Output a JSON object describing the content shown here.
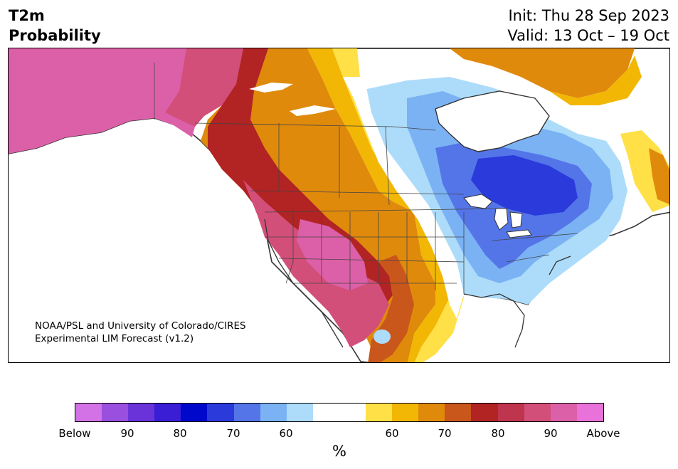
{
  "header": {
    "variable": "T2m",
    "product": "Probability",
    "init": "Init: Thu 28 Sep 2023",
    "valid": "Valid: 13 Oct – 19 Oct"
  },
  "map": {
    "credit_line1": "NOAA/PSL and University of Colorado/CIRES",
    "credit_line2": "Experimental LIM Forecast (v1.2)",
    "region": "North America",
    "forecast_pattern": {
      "above_normal": [
        "Alaska",
        "Western Canada",
        "Western United States",
        "Southern Plains",
        "Northern Quebec / Labrador"
      ],
      "below_normal": [
        "Ontario / Hudson Bay region",
        "Great Lakes",
        "Ohio Valley",
        "Northeast United States",
        "Southeast United States"
      ]
    }
  },
  "colorbar": {
    "unit": "%",
    "colors": [
      "#d272e6",
      "#9a4fdf",
      "#6a33d9",
      "#3a1ed6",
      "#0008cc",
      "#2a3adb",
      "#5475e8",
      "#7bb2f3",
      "#addcfa",
      "#ffffff",
      "#ffffff",
      "#ffe047",
      "#f2b705",
      "#e08a0c",
      "#c9561a",
      "#b22323",
      "#c0354e",
      "#d24f7a",
      "#dc60a8",
      "#e872da"
    ],
    "tick_labels": [
      "Below",
      "90",
      "80",
      "70",
      "60",
      "60",
      "70",
      "80",
      "90",
      "Above"
    ]
  }
}
